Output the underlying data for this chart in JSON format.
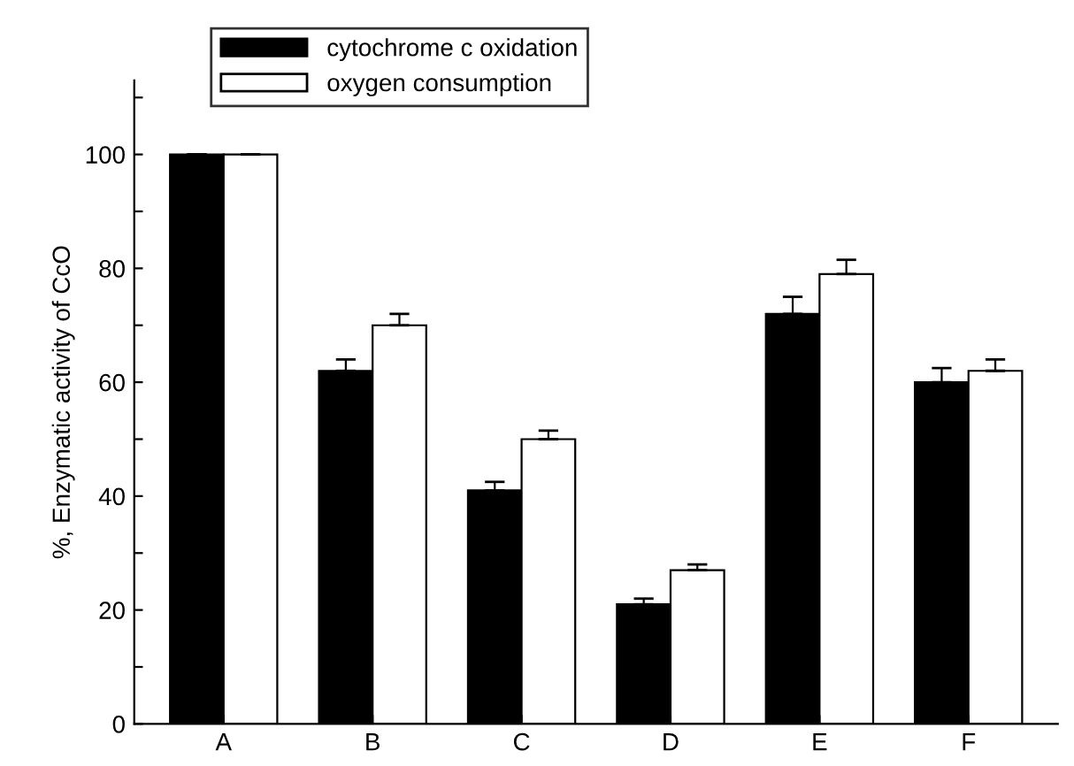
{
  "chart_data": {
    "type": "bar",
    "ylabel": "%, Enzymatic activity of CcO",
    "categories": [
      "A",
      "B",
      "C",
      "D",
      "E",
      "F"
    ],
    "series": [
      {
        "name": "cytochrome c oxidation",
        "color": "#000000",
        "values": [
          100,
          62,
          41,
          21,
          72,
          60
        ],
        "errors": [
          null,
          2,
          1.5,
          1,
          3,
          2.5
        ]
      },
      {
        "name": "oxygen consumption",
        "color": "#ffffff",
        "values": [
          100,
          70,
          50,
          27,
          79,
          62
        ],
        "errors": [
          null,
          2,
          1.5,
          1,
          2.5,
          2
        ]
      }
    ],
    "ylim": [
      0,
      113
    ],
    "yticks": [
      0,
      {
        "value": 10,
        "label": null
      },
      20,
      {
        "value": 30,
        "label": null
      },
      40,
      {
        "value": 50,
        "label": null
      },
      60,
      {
        "value": 70,
        "label": null
      },
      80,
      {
        "value": 90,
        "label": null
      },
      100,
      {
        "value": 110,
        "label": null
      }
    ],
    "legend": "top left",
    "grid": false
  }
}
